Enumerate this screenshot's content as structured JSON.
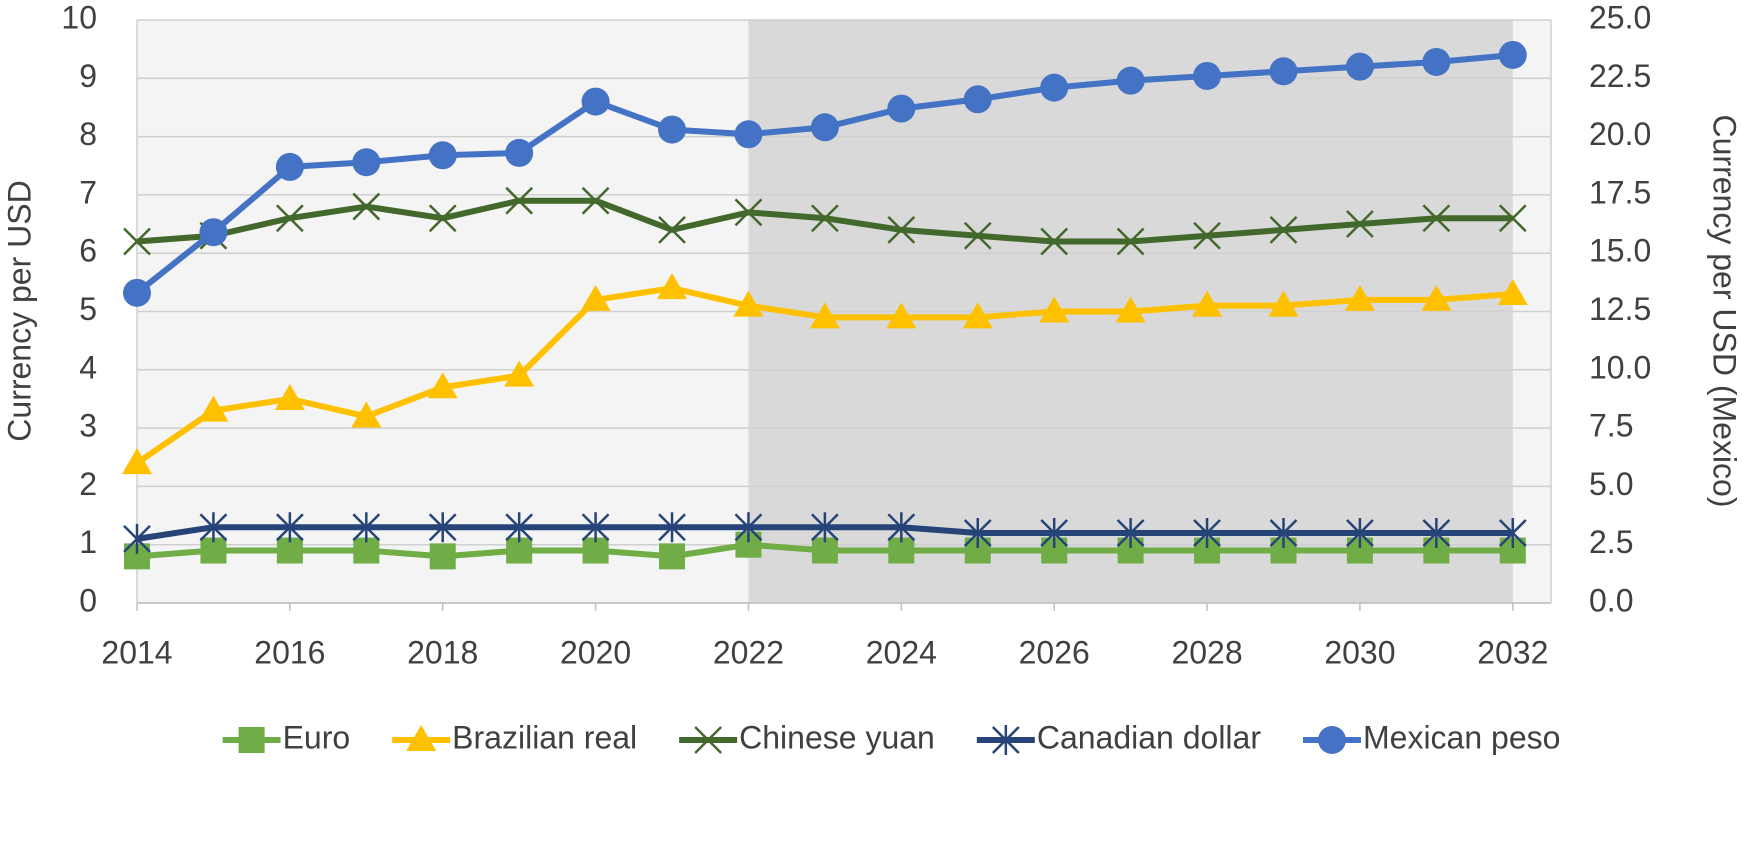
{
  "chart_data": {
    "type": "line",
    "ylabel": "Currency per USD",
    "y2label": "Currency per USD (Mexico)",
    "x": [
      2014,
      2015,
      2016,
      2017,
      2018,
      2019,
      2020,
      2021,
      2022,
      2023,
      2024,
      2025,
      2026,
      2027,
      2028,
      2029,
      2030,
      2031,
      2032
    ],
    "xlim": [
      2014,
      2032.5
    ],
    "xticks": [
      2014,
      2016,
      2018,
      2020,
      2022,
      2024,
      2026,
      2028,
      2030,
      2032
    ],
    "ylim": [
      0,
      10
    ],
    "yticks": [
      0,
      1,
      2,
      3,
      4,
      5,
      6,
      7,
      8,
      9,
      10
    ],
    "y2lim": [
      0,
      25
    ],
    "y2ticks": [
      {
        "value": 0,
        "label": "0.0"
      },
      2.5,
      {
        "value": 5,
        "label": "5.0"
      },
      7.5,
      {
        "value": 10,
        "label": "10.0"
      },
      12.5,
      {
        "value": 15,
        "label": "15.0"
      },
      17.5,
      {
        "value": 20,
        "label": "20.0"
      },
      22.5,
      {
        "value": 25,
        "label": "25.0"
      }
    ],
    "grid": true,
    "shaded_range": [
      2022,
      2032
    ],
    "legend": "bottom",
    "series": [
      {
        "name": "Euro",
        "color": "#70ad47",
        "marker": "square",
        "values": [
          0.8,
          0.9,
          0.9,
          0.9,
          0.8,
          0.9,
          0.9,
          0.8,
          1.0,
          0.9,
          0.9,
          0.9,
          0.9,
          0.9,
          0.9,
          0.9,
          0.9,
          0.9,
          0.9
        ]
      },
      {
        "name": "Brazilian real",
        "color": "#ffc000",
        "marker": "triangle",
        "values": [
          2.4,
          3.3,
          3.5,
          3.2,
          3.7,
          3.9,
          5.2,
          5.4,
          5.1,
          4.9,
          4.9,
          4.9,
          5.0,
          5.0,
          5.1,
          5.1,
          5.2,
          5.2,
          5.3
        ]
      },
      {
        "name": "Chinese yuan",
        "color": "#43682b",
        "marker": "x",
        "values": [
          6.2,
          6.3,
          6.6,
          6.8,
          6.6,
          6.9,
          6.9,
          6.4,
          6.7,
          6.6,
          6.4,
          6.3,
          6.2,
          6.2,
          6.3,
          6.4,
          6.5,
          6.6,
          6.6
        ]
      },
      {
        "name": "Canadian dollar",
        "color": "#264478",
        "marker": "asterisk",
        "values": [
          1.1,
          1.3,
          1.3,
          1.3,
          1.3,
          1.3,
          1.3,
          1.3,
          1.3,
          1.3,
          1.3,
          1.2,
          1.2,
          1.2,
          1.2,
          1.2,
          1.2,
          1.2,
          1.2
        ]
      },
      {
        "name": "Mexican peso",
        "color": "#4472c4",
        "marker": "circle",
        "axis": "y2",
        "values": [
          13.3,
          15.9,
          18.7,
          18.9,
          19.2,
          19.3,
          21.5,
          20.3,
          20.1,
          20.4,
          21.2,
          21.6,
          22.1,
          22.4,
          22.6,
          22.8,
          23.0,
          23.2,
          23.5
        ]
      }
    ]
  }
}
